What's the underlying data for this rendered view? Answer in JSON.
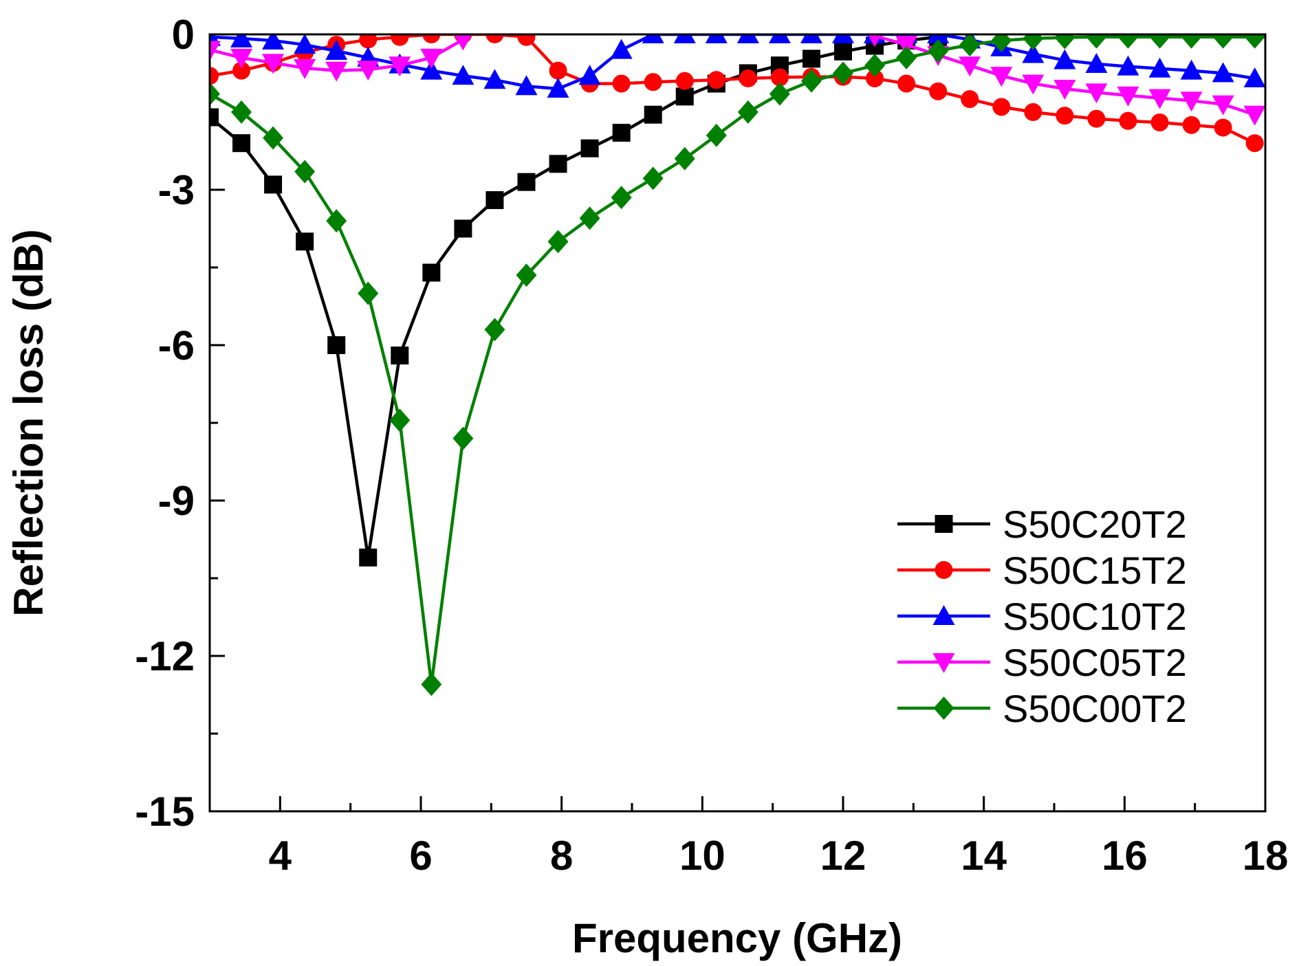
{
  "chart_data": {
    "type": "line",
    "title": "",
    "xlabel": "Frequency (GHz)",
    "ylabel": "Reflection loss (dB)",
    "xlim": [
      3,
      18
    ],
    "ylim": [
      -15,
      0
    ],
    "xticks": [
      4,
      6,
      8,
      10,
      12,
      14,
      16,
      18
    ],
    "yticks": [
      0,
      -3,
      -6,
      -9,
      -12,
      -15
    ],
    "grid": false,
    "legend_position": "lower-right",
    "series": [
      {
        "name": "S50C20T2",
        "color": "#000000",
        "marker": "square",
        "x": [
          3.0,
          3.45,
          3.9,
          4.35,
          4.8,
          5.25,
          5.7,
          6.15,
          6.6,
          7.05,
          7.5,
          7.95,
          8.4,
          8.85,
          9.3,
          9.75,
          10.2,
          10.65,
          11.1,
          11.55,
          12.0,
          12.45,
          12.9,
          13.35
        ],
        "y": [
          -1.6,
          -2.1,
          -2.9,
          -4.0,
          -6.0,
          -10.1,
          -6.2,
          -4.6,
          -3.75,
          -3.2,
          -2.85,
          -2.5,
          -2.2,
          -1.9,
          -1.55,
          -1.2,
          -0.95,
          -0.75,
          -0.6,
          -0.47,
          -0.33,
          -0.22,
          -0.12,
          -0.05
        ]
      },
      {
        "name": "S50C15T2",
        "color": "#ff0000",
        "marker": "circle",
        "x": [
          3.0,
          3.45,
          3.9,
          4.35,
          4.8,
          5.25,
          5.7,
          6.15,
          6.6,
          7.05,
          7.5,
          7.95,
          8.4,
          8.85,
          9.3,
          9.75,
          10.2,
          10.65,
          11.1,
          11.55,
          12.0,
          12.45,
          12.9,
          13.35,
          13.8,
          14.25,
          14.7,
          15.15,
          15.6,
          16.05,
          16.5,
          16.95,
          17.4,
          17.85
        ],
        "y": [
          -0.8,
          -0.7,
          -0.55,
          -0.35,
          -0.2,
          -0.1,
          -0.05,
          -0.0,
          0.0,
          0.0,
          -0.05,
          -0.7,
          -0.95,
          -0.95,
          -0.92,
          -0.9,
          -0.88,
          -0.85,
          -0.83,
          -0.82,
          -0.82,
          -0.85,
          -0.95,
          -1.1,
          -1.25,
          -1.4,
          -1.5,
          -1.57,
          -1.63,
          -1.67,
          -1.7,
          -1.75,
          -1.8,
          -2.1
        ]
      },
      {
        "name": "S50C10T2",
        "color": "#0000ff",
        "marker": "triangle-up",
        "x": [
          3.0,
          3.45,
          3.9,
          4.35,
          4.8,
          5.25,
          5.7,
          6.15,
          6.6,
          7.05,
          7.5,
          7.95,
          8.4,
          8.85,
          9.3,
          9.75,
          10.2,
          10.65,
          11.1,
          11.55,
          12.0,
          12.45,
          12.9,
          13.35,
          13.8,
          14.25,
          14.7,
          15.15,
          15.6,
          16.05,
          16.5,
          16.95,
          17.4,
          17.85
        ],
        "y": [
          -0.05,
          -0.08,
          -0.12,
          -0.2,
          -0.32,
          -0.45,
          -0.58,
          -0.7,
          -0.8,
          -0.88,
          -1.0,
          -1.05,
          -0.8,
          -0.3,
          0.0,
          0.0,
          0.0,
          0.0,
          0.0,
          0.0,
          0.0,
          0.0,
          0.0,
          0.0,
          -0.1,
          -0.25,
          -0.38,
          -0.5,
          -0.57,
          -0.62,
          -0.66,
          -0.7,
          -0.75,
          -0.85
        ]
      },
      {
        "name": "S50C05T2",
        "color": "#ff00ff",
        "marker": "triangle-down",
        "x": [
          3.0,
          3.45,
          3.9,
          4.35,
          4.8,
          5.25,
          5.7,
          6.15,
          6.6,
          12.45,
          12.9,
          13.35,
          13.8,
          14.25,
          14.7,
          15.15,
          15.6,
          16.05,
          16.5,
          16.95,
          17.4,
          17.85
        ],
        "y": [
          -0.3,
          -0.45,
          -0.55,
          -0.65,
          -0.7,
          -0.68,
          -0.6,
          -0.45,
          -0.1,
          -0.03,
          -0.2,
          -0.4,
          -0.6,
          -0.8,
          -0.95,
          -1.05,
          -1.12,
          -1.18,
          -1.23,
          -1.28,
          -1.35,
          -1.55
        ]
      },
      {
        "name": "S50C00T2",
        "color": "#008000",
        "marker": "diamond",
        "x": [
          3.0,
          3.45,
          3.9,
          4.35,
          4.8,
          5.25,
          5.7,
          6.15,
          6.6,
          7.05,
          7.5,
          7.95,
          8.4,
          8.85,
          9.3,
          9.75,
          10.2,
          10.65,
          11.1,
          11.55,
          12.0,
          12.45,
          12.9,
          13.35,
          13.8,
          14.25,
          14.7,
          15.15,
          15.6,
          16.05,
          16.5,
          16.95,
          17.4,
          17.85
        ],
        "y": [
          -1.15,
          -1.5,
          -2.0,
          -2.65,
          -3.6,
          -5.0,
          -7.45,
          -12.55,
          -7.8,
          -5.7,
          -4.65,
          -4.0,
          -3.55,
          -3.15,
          -2.78,
          -2.4,
          -1.95,
          -1.5,
          -1.15,
          -0.9,
          -0.75,
          -0.6,
          -0.45,
          -0.32,
          -0.2,
          -0.12,
          -0.08,
          -0.06,
          -0.05,
          -0.05,
          -0.05,
          -0.05,
          -0.05,
          -0.05
        ]
      }
    ]
  }
}
